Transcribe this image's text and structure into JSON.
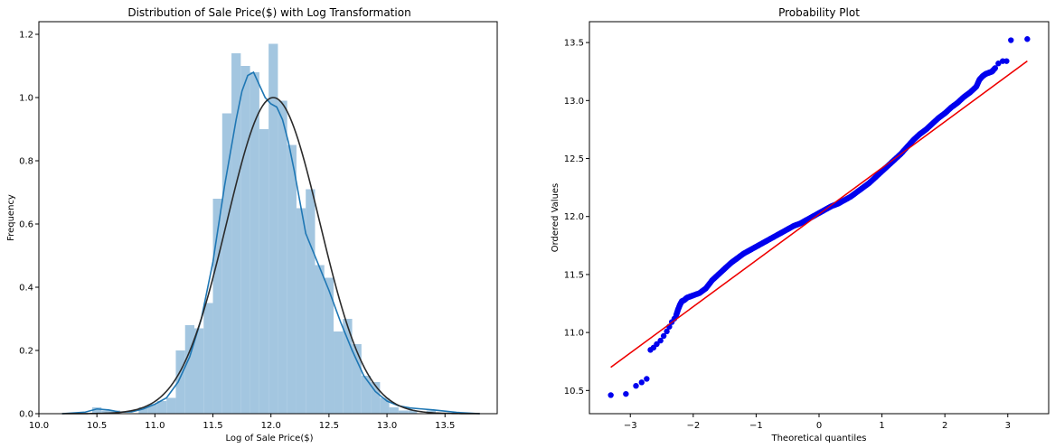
{
  "chart_data": [
    {
      "type": "histogram",
      "title": "Distribution of Sale Price($) with Log Transformation",
      "xlabel": "Log of Sale Price($)",
      "ylabel": "Frequency",
      "xlim": [
        10.0,
        13.95
      ],
      "ylim": [
        0,
        1.24
      ],
      "xticks": [
        10.0,
        10.5,
        11.0,
        11.5,
        12.0,
        12.5,
        13.0,
        13.5
      ],
      "xtick_labels": [
        "10.0",
        "10.5",
        "11.0",
        "11.5",
        "12.0",
        "12.5",
        "13.0",
        "13.5"
      ],
      "yticks": [
        0.0,
        0.2,
        0.4,
        0.6,
        0.8,
        1.0,
        1.2
      ],
      "ytick_labels": [
        "0.0",
        "0.2",
        "0.4",
        "0.6",
        "0.8",
        "1.0",
        "1.2"
      ],
      "grid": false,
      "bins": {
        "left_edges": [
          10.46,
          10.54,
          10.62,
          10.7,
          10.78,
          10.86,
          10.94,
          11.02,
          11.1,
          11.18,
          11.26,
          11.34,
          11.42,
          11.5,
          11.58,
          11.66,
          11.74,
          11.82,
          11.9,
          11.98,
          12.06,
          12.14,
          12.22,
          12.3,
          12.38,
          12.46,
          12.54,
          12.62,
          12.7,
          12.78,
          12.86,
          12.94,
          13.02,
          13.1,
          13.18,
          13.26,
          13.34,
          13.42,
          13.5
        ],
        "width": 0.08,
        "values": [
          0.02,
          0.01,
          0.01,
          0.0,
          0.0,
          0.02,
          0.03,
          0.04,
          0.05,
          0.2,
          0.28,
          0.27,
          0.35,
          0.68,
          0.95,
          1.14,
          1.1,
          1.08,
          0.9,
          1.17,
          0.99,
          0.85,
          0.65,
          0.71,
          0.47,
          0.43,
          0.26,
          0.3,
          0.22,
          0.12,
          0.1,
          0.05,
          0.02,
          0.01,
          0.01,
          0.0,
          0.01,
          0.0,
          0.0
        ],
        "color": "#a3c6e0"
      },
      "series": [
        {
          "type": "kde",
          "color": "#1f77b4",
          "x": [
            10.2,
            10.4,
            10.5,
            10.6,
            10.7,
            10.8,
            10.9,
            11.0,
            11.1,
            11.2,
            11.3,
            11.4,
            11.5,
            11.6,
            11.7,
            11.75,
            11.8,
            11.85,
            11.9,
            11.95,
            12.0,
            12.05,
            12.1,
            12.15,
            12.2,
            12.25,
            12.3,
            12.4,
            12.5,
            12.6,
            12.7,
            12.8,
            12.9,
            13.0,
            13.1,
            13.2,
            13.3,
            13.4,
            13.5,
            13.6,
            13.8
          ],
          "y": [
            0.0,
            0.005,
            0.015,
            0.012,
            0.005,
            0.006,
            0.015,
            0.03,
            0.05,
            0.1,
            0.18,
            0.3,
            0.48,
            0.72,
            0.93,
            1.02,
            1.07,
            1.08,
            1.04,
            1.0,
            0.98,
            0.97,
            0.93,
            0.86,
            0.77,
            0.67,
            0.57,
            0.48,
            0.39,
            0.29,
            0.2,
            0.12,
            0.07,
            0.04,
            0.025,
            0.018,
            0.015,
            0.012,
            0.008,
            0.004,
            0.0
          ]
        },
        {
          "type": "norm fit",
          "color": "#2b2b2b",
          "mean": 12.02,
          "std": 0.4,
          "peak": 1.0,
          "x_range": [
            10.2,
            13.8
          ]
        }
      ]
    },
    {
      "type": "scatter",
      "title": "Probability Plot",
      "xlabel": "Theoretical quantiles",
      "ylabel": "Ordered Values",
      "xlim": [
        -3.65,
        3.65
      ],
      "ylim": [
        10.3,
        13.68
      ],
      "xticks": [
        -3,
        -2,
        -1,
        0,
        1,
        2,
        3
      ],
      "xtick_labels": [
        "−3",
        "−2",
        "−1",
        "0",
        "1",
        "2",
        "3"
      ],
      "yticks": [
        10.5,
        11.0,
        11.5,
        12.0,
        12.5,
        13.0,
        13.5
      ],
      "ytick_labels": [
        "10.5",
        "11.0",
        "11.5",
        "12.0",
        "12.5",
        "13.0",
        "13.5"
      ],
      "grid": false,
      "points_color": "#0000ee",
      "points": {
        "x": [
          -3.31,
          -3.07,
          -2.91,
          -2.82,
          -2.74,
          -2.68,
          -2.63,
          -2.58,
          -2.52,
          -2.47,
          -2.42,
          -2.38,
          -2.34,
          -2.3,
          -2.27,
          -2.24,
          -2.21,
          -2.18,
          -2.14,
          -2.1,
          -2.05,
          -2.0,
          -1.9,
          -1.8,
          -1.7,
          -1.6,
          -1.5,
          -1.4,
          -1.3,
          -1.2,
          -1.1,
          -1.0,
          -0.9,
          -0.8,
          -0.7,
          -0.6,
          -0.5,
          -0.4,
          -0.3,
          -0.2,
          -0.1,
          0.0,
          0.1,
          0.2,
          0.3,
          0.4,
          0.5,
          0.6,
          0.7,
          0.8,
          0.9,
          1.0,
          1.1,
          1.2,
          1.3,
          1.4,
          1.5,
          1.6,
          1.7,
          1.8,
          1.9,
          2.0,
          2.1,
          2.2,
          2.3,
          2.4,
          2.5,
          2.55,
          2.6,
          2.65,
          2.7,
          2.75,
          2.8,
          2.85,
          2.92,
          2.98,
          3.05,
          3.31
        ],
        "y": [
          10.46,
          10.47,
          10.54,
          10.57,
          10.6,
          10.85,
          10.87,
          10.9,
          10.93,
          10.97,
          11.01,
          11.05,
          11.09,
          11.12,
          11.15,
          11.2,
          11.24,
          11.27,
          11.28,
          11.3,
          11.31,
          11.32,
          11.34,
          11.38,
          11.45,
          11.5,
          11.55,
          11.6,
          11.64,
          11.68,
          11.71,
          11.74,
          11.77,
          11.8,
          11.83,
          11.86,
          11.89,
          11.92,
          11.94,
          11.97,
          12.0,
          12.03,
          12.06,
          12.09,
          12.11,
          12.14,
          12.17,
          12.21,
          12.25,
          12.29,
          12.34,
          12.39,
          12.44,
          12.49,
          12.54,
          12.6,
          12.66,
          12.71,
          12.75,
          12.8,
          12.85,
          12.89,
          12.94,
          12.98,
          13.03,
          13.07,
          13.12,
          13.18,
          13.21,
          13.23,
          13.24,
          13.25,
          13.28,
          13.32,
          13.34,
          13.34,
          13.52,
          13.53
        ]
      },
      "fit_line": {
        "color": "#ee0000",
        "x": [
          -3.31,
          3.31
        ],
        "y": [
          10.7,
          13.34
        ]
      }
    }
  ]
}
